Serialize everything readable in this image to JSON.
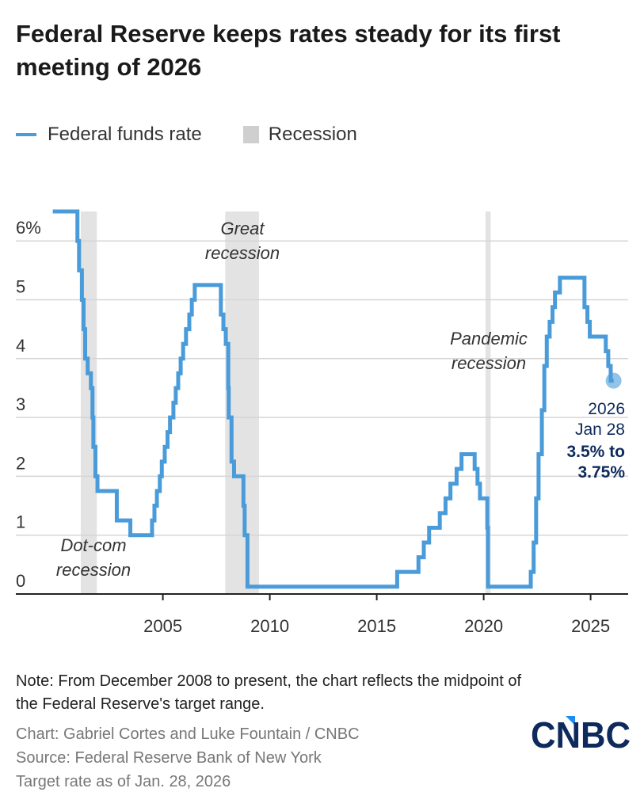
{
  "title": "Federal Reserve keeps rates steady for its first meeting of 2026",
  "legend": {
    "series": "Federal funds rate",
    "recession": "Recession"
  },
  "colors": {
    "line": "#4a9bd9",
    "recession": "#e3e3e3",
    "grid": "#d5d5d5",
    "annotation_dark": "#0e2a5c",
    "logo_blue": "#0e2a5c",
    "logo_accent": "#1e8cf0"
  },
  "chart_data": {
    "type": "line",
    "step": true,
    "title": "Federal Reserve keeps rates steady for its first meeting of 2026",
    "xlabel": "",
    "ylabel": "",
    "ylim": [
      0,
      6.5
    ],
    "yticks": [
      0,
      1,
      2,
      3,
      4,
      5,
      6
    ],
    "ytick_labels": [
      "0",
      "1",
      "2",
      "3",
      "4",
      "5",
      "6%"
    ],
    "xticks": [
      2005,
      2010,
      2015,
      2020,
      2025
    ],
    "xtick_labels": [
      "2005",
      "2010",
      "2015",
      "2020",
      "2025"
    ],
    "grid": "horizontal",
    "series": [
      {
        "name": "Federal funds rate",
        "points": [
          [
            "2000-05-16",
            6.5
          ],
          [
            "2001-01-03",
            6.0
          ],
          [
            "2001-01-31",
            5.5
          ],
          [
            "2001-03-20",
            5.0
          ],
          [
            "2001-04-18",
            4.5
          ],
          [
            "2001-05-15",
            4.0
          ],
          [
            "2001-06-27",
            3.75
          ],
          [
            "2001-08-21",
            3.5
          ],
          [
            "2001-09-17",
            3.0
          ],
          [
            "2001-10-02",
            2.5
          ],
          [
            "2001-11-06",
            2.0
          ],
          [
            "2001-12-11",
            1.75
          ],
          [
            "2002-11-06",
            1.25
          ],
          [
            "2003-06-25",
            1.0
          ],
          [
            "2004-06-30",
            1.25
          ],
          [
            "2004-08-10",
            1.5
          ],
          [
            "2004-09-21",
            1.75
          ],
          [
            "2004-11-10",
            2.0
          ],
          [
            "2004-12-14",
            2.25
          ],
          [
            "2005-02-02",
            2.5
          ],
          [
            "2005-03-22",
            2.75
          ],
          [
            "2005-05-03",
            3.0
          ],
          [
            "2005-06-30",
            3.25
          ],
          [
            "2005-08-09",
            3.5
          ],
          [
            "2005-09-20",
            3.75
          ],
          [
            "2005-11-01",
            4.0
          ],
          [
            "2005-12-13",
            4.25
          ],
          [
            "2006-01-31",
            4.5
          ],
          [
            "2006-03-28",
            4.75
          ],
          [
            "2006-05-10",
            5.0
          ],
          [
            "2006-06-29",
            5.25
          ],
          [
            "2007-09-18",
            4.75
          ],
          [
            "2007-10-31",
            4.5
          ],
          [
            "2007-12-11",
            4.25
          ],
          [
            "2008-01-22",
            3.5
          ],
          [
            "2008-01-30",
            3.0
          ],
          [
            "2008-03-18",
            2.25
          ],
          [
            "2008-04-30",
            2.0
          ],
          [
            "2008-10-08",
            1.5
          ],
          [
            "2008-10-29",
            1.0
          ],
          [
            "2008-12-16",
            0.125
          ],
          [
            "2015-12-16",
            0.375
          ],
          [
            "2016-12-14",
            0.625
          ],
          [
            "2017-03-15",
            0.875
          ],
          [
            "2017-06-14",
            1.125
          ],
          [
            "2017-12-13",
            1.375
          ],
          [
            "2018-03-21",
            1.625
          ],
          [
            "2018-06-13",
            1.875
          ],
          [
            "2018-09-26",
            2.125
          ],
          [
            "2018-12-19",
            2.375
          ],
          [
            "2019-07-31",
            2.125
          ],
          [
            "2019-09-18",
            1.875
          ],
          [
            "2019-10-30",
            1.625
          ],
          [
            "2020-03-03",
            1.125
          ],
          [
            "2020-03-15",
            0.125
          ],
          [
            "2022-03-16",
            0.375
          ],
          [
            "2022-05-04",
            0.875
          ],
          [
            "2022-06-15",
            1.625
          ],
          [
            "2022-07-27",
            2.375
          ],
          [
            "2022-09-21",
            3.125
          ],
          [
            "2022-11-02",
            3.875
          ],
          [
            "2022-12-14",
            4.375
          ],
          [
            "2023-02-01",
            4.625
          ],
          [
            "2023-03-22",
            4.875
          ],
          [
            "2023-05-03",
            5.125
          ],
          [
            "2023-07-26",
            5.375
          ],
          [
            "2024-09-18",
            4.875
          ],
          [
            "2024-11-07",
            4.625
          ],
          [
            "2024-12-18",
            4.375
          ],
          [
            "2025-09-17",
            4.125
          ],
          [
            "2025-10-29",
            3.875
          ],
          [
            "2025-12-10",
            3.625
          ],
          [
            "2026-01-28",
            3.625
          ]
        ]
      }
    ],
    "recessions": [
      {
        "label": "Dot-com recession",
        "start": "2001-03-01",
        "end": "2001-11-30"
      },
      {
        "label": "Great recession",
        "start": "2007-12-01",
        "end": "2009-06-30"
      },
      {
        "label": "Pandemic recession",
        "start": "2020-02-01",
        "end": "2020-04-30"
      }
    ],
    "annotations": {
      "dotcom": [
        "Dot-com",
        "recession"
      ],
      "great": [
        "Great",
        "recession"
      ],
      "pandemic": [
        "Pandemic",
        "recession"
      ],
      "latest": {
        "year": "2026",
        "date": "Jan 28",
        "range1": "3.5% to",
        "range2": "3.75%"
      }
    }
  },
  "footer": {
    "note": "Note: From December 2008 to present, the chart reflects the midpoint of the Federal Reserve's target range.",
    "credit": "Chart: Gabriel Cortes and Luke Fountain / CNBC",
    "source": "Source: Federal Reserve Bank of New York",
    "asof": "Target rate as of Jan. 28, 2026",
    "logo": "CNBC"
  }
}
